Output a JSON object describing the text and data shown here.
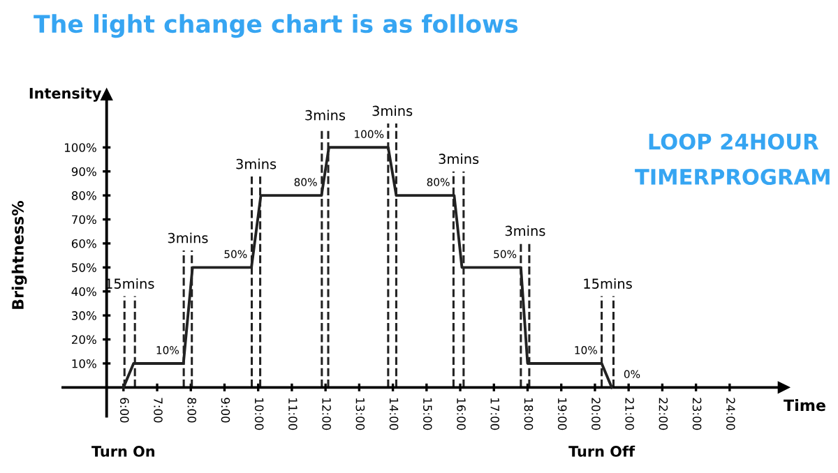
{
  "chart_data": {
    "type": "line",
    "title": "The light change chart is as follows",
    "xlabel": "Time",
    "ylabel": "Brightness%",
    "series": [
      {
        "color": "#222222",
        "x": [
          6.0,
          6.3,
          7.78,
          8.05,
          9.8,
          10.08,
          11.88,
          12.1,
          13.86,
          14.1,
          15.82,
          16.05,
          17.8,
          18.0,
          20.2,
          20.5
        ],
        "values": [
          0,
          10,
          10,
          50,
          50,
          80,
          80,
          100,
          100,
          80,
          80,
          50,
          50,
          10,
          10,
          0
        ],
        "value_labels": [
          null,
          null,
          "10%",
          null,
          "50%",
          null,
          "80%",
          null,
          "100%",
          null,
          "80%",
          null,
          "50%",
          null,
          "10%",
          "0%"
        ]
      }
    ],
    "xlim": [
      4.2,
      25.6
    ],
    "ylim": [
      -12,
      122
    ],
    "xticks": [
      {
        "value": 6,
        "label": "6:00"
      },
      {
        "value": 7,
        "label": "7:00"
      },
      {
        "value": 8,
        "label": "8:00"
      },
      {
        "value": 9,
        "label": "9:00"
      },
      {
        "value": 10,
        "label": "10:00"
      },
      {
        "value": 11,
        "label": "11:00"
      },
      {
        "value": 12,
        "label": "12:00"
      },
      {
        "value": 13,
        "label": "13:00"
      },
      {
        "value": 14,
        "label": "14:00"
      },
      {
        "value": 15,
        "label": "15:00"
      },
      {
        "value": 16,
        "label": "16:00"
      },
      {
        "value": 17,
        "label": "17:00"
      },
      {
        "value": 18,
        "label": "18:00"
      },
      {
        "value": 19,
        "label": "19:00"
      },
      {
        "value": 20,
        "label": "20:00"
      },
      {
        "value": 21,
        "label": "21:00"
      },
      {
        "value": 22,
        "label": "22:00"
      },
      {
        "value": 23,
        "label": "23:00"
      },
      {
        "value": 24,
        "label": "24:00"
      }
    ],
    "yticks": [
      {
        "value": 10,
        "label": "10%"
      },
      {
        "value": 20,
        "label": "20%"
      },
      {
        "value": 30,
        "label": "30%"
      },
      {
        "value": 40,
        "label": "40%"
      },
      {
        "value": 50,
        "label": "50%"
      },
      {
        "value": 60,
        "label": "60%"
      },
      {
        "value": 70,
        "label": "70%"
      },
      {
        "value": 80,
        "label": "80%"
      },
      {
        "value": 90,
        "label": "90%"
      },
      {
        "value": 100,
        "label": "100%"
      }
    ],
    "ref_lines": [
      {
        "axis": "x",
        "value": 6.03,
        "line_style": "dashed",
        "label": "15mins"
      },
      {
        "axis": "x",
        "value": 6.34,
        "line_style": "dashed"
      },
      {
        "axis": "x",
        "value": 7.79,
        "line_style": "dashed",
        "label": "3mins"
      },
      {
        "axis": "x",
        "value": 8.03,
        "line_style": "dashed"
      },
      {
        "axis": "x",
        "value": 9.81,
        "line_style": "dashed",
        "label": "3mins"
      },
      {
        "axis": "x",
        "value": 10.06,
        "line_style": "dashed"
      },
      {
        "axis": "x",
        "value": 11.89,
        "line_style": "dashed",
        "label": "3mins"
      },
      {
        "axis": "x",
        "value": 12.08,
        "line_style": "dashed"
      },
      {
        "axis": "x",
        "value": 13.86,
        "line_style": "dashed",
        "label": "3mins"
      },
      {
        "axis": "x",
        "value": 14.1,
        "line_style": "dashed"
      },
      {
        "axis": "x",
        "value": 15.8,
        "line_style": "dashed",
        "label": "3mins"
      },
      {
        "axis": "x",
        "value": 16.1,
        "line_style": "dashed"
      },
      {
        "axis": "x",
        "value": 17.8,
        "line_style": "dashed",
        "label": "3mins"
      },
      {
        "axis": "x",
        "value": 18.05,
        "line_style": "dashed"
      },
      {
        "axis": "x",
        "value": 20.2,
        "line_style": "dashed",
        "label": "15mins"
      },
      {
        "axis": "x",
        "value": 20.55,
        "line_style": "dashed"
      }
    ],
    "annotations": [
      "Intensity",
      "LOOP 24HOUR\nTIMERPROGRAM",
      "Turn On",
      "Turn Off"
    ]
  }
}
